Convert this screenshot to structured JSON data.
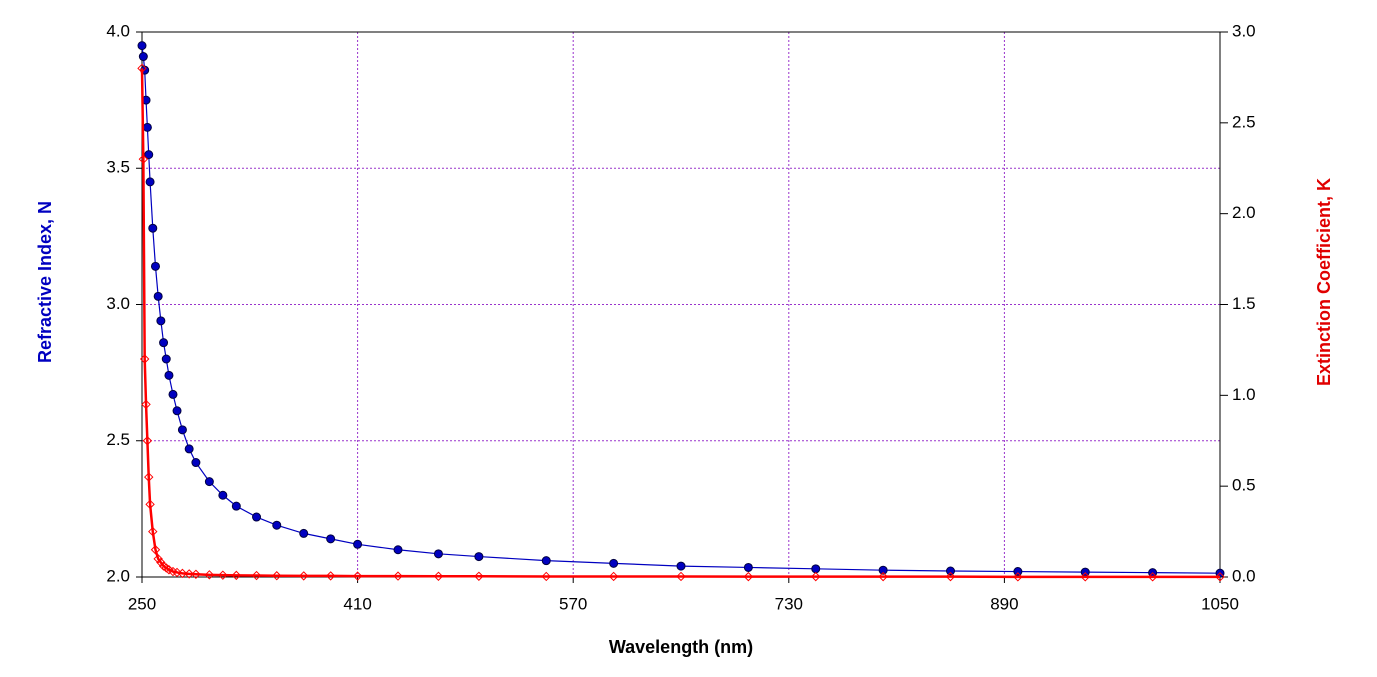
{
  "chart_data": {
    "type": "line",
    "x_label": "Wavelength (nm)",
    "y_label": "Refractive Index, N",
    "y2_label": "Extinction Coefficient, K",
    "x": [
      250,
      251,
      252,
      253,
      254,
      255,
      256,
      258,
      260,
      262,
      264,
      266,
      268,
      270,
      273,
      276,
      280,
      285,
      290,
      300,
      310,
      320,
      335,
      350,
      370,
      390,
      410,
      440,
      470,
      500,
      550,
      600,
      650,
      700,
      750,
      800,
      850,
      900,
      950,
      1000,
      1050
    ],
    "series": [
      {
        "name": "N",
        "color": "#0000c0",
        "marker": "circle",
        "axis": "y",
        "values": [
          3.95,
          3.91,
          3.86,
          3.75,
          3.65,
          3.55,
          3.45,
          3.28,
          3.14,
          3.03,
          2.94,
          2.86,
          2.8,
          2.74,
          2.67,
          2.61,
          2.54,
          2.47,
          2.42,
          2.35,
          2.3,
          2.26,
          2.22,
          2.19,
          2.16,
          2.14,
          2.12,
          2.1,
          2.085,
          2.075,
          2.06,
          2.05,
          2.04,
          2.035,
          2.03,
          2.025,
          2.022,
          2.02,
          2.018,
          2.016,
          2.014
        ]
      },
      {
        "name": "K",
        "color": "#ff0000",
        "marker": "diamond",
        "axis": "y2",
        "values": [
          2.8,
          2.3,
          1.2,
          0.95,
          0.75,
          0.55,
          0.4,
          0.25,
          0.15,
          0.1,
          0.08,
          0.06,
          0.05,
          0.04,
          0.03,
          0.025,
          0.02,
          0.017,
          0.015,
          0.012,
          0.01,
          0.009,
          0.008,
          0.007,
          0.006,
          0.006,
          0.005,
          0.005,
          0.004,
          0.004,
          0.003,
          0.003,
          0.003,
          0.002,
          0.002,
          0.002,
          0.002,
          0.001,
          0.001,
          0.001,
          0.001
        ]
      }
    ],
    "xlim": [
      250,
      1050
    ],
    "xticks": [
      250,
      410,
      570,
      730,
      890,
      1050
    ],
    "ylim": [
      2,
      4
    ],
    "yticks": [
      {
        "value": 2,
        "label": "2.0"
      },
      {
        "value": 2.5,
        "label": "2.5"
      },
      {
        "value": 3,
        "label": "3.0"
      },
      {
        "value": 3.5,
        "label": "3.5"
      },
      {
        "value": 4,
        "label": "4.0"
      }
    ],
    "y2lim": [
      0,
      3
    ],
    "y2ticks": [
      {
        "value": 0,
        "label": "0.0"
      },
      {
        "value": 0.5,
        "label": "0.5"
      },
      {
        "value": 1,
        "label": "1.0"
      },
      {
        "value": 1.5,
        "label": "1.5"
      },
      {
        "value": 2,
        "label": "2.0"
      },
      {
        "value": 2.5,
        "label": "2.5"
      },
      {
        "value": 3,
        "label": "3.0"
      }
    ],
    "grid": true,
    "grid_color": "#9933cc"
  }
}
